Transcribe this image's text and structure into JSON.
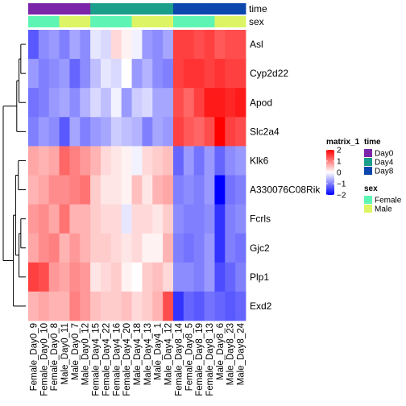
{
  "chart_data": {
    "type": "heatmap",
    "annotation_labels": [
      "time",
      "sex"
    ],
    "columns": [
      "Female_Day0_9",
      "Female_Day0_10",
      "Female_Day0_8",
      "Male_Day0_11",
      "Male_Day0_7",
      "Male_Day0_12",
      "Female_Day4_15",
      "Female_Day4_22",
      "Female_Day4_16",
      "Female_Day4_20",
      "Male_Day4_18",
      "Male_Day4_13",
      "Male_Day4_1",
      "Male_Day4_12",
      "Female_Day8_14",
      "Female_Day8_5",
      "Female_Day8_19",
      "Female_Day8_13",
      "Male_Day8_6",
      "Male_Day8_23",
      "Male_Day8_24"
    ],
    "column_time": [
      "Day0",
      "Day0",
      "Day0",
      "Day0",
      "Day0",
      "Day0",
      "Day4",
      "Day4",
      "Day4",
      "Day4",
      "Day4",
      "Day4",
      "Day4",
      "Day4",
      "Day8",
      "Day8",
      "Day8",
      "Day8",
      "Day8",
      "Day8",
      "Day8"
    ],
    "column_sex": [
      "Female",
      "Female",
      "Female",
      "Male",
      "Male",
      "Male",
      "Female",
      "Female",
      "Female",
      "Female",
      "Male",
      "Male",
      "Male",
      "Male",
      "Female",
      "Female",
      "Female",
      "Female",
      "Male",
      "Male",
      "Male"
    ],
    "rows": [
      "Asl",
      "Cyp2d22",
      "Apod",
      "Slc2a4",
      "Klk6",
      "A330076C08Rik",
      "Fcrls",
      "Gjc2",
      "Plp1",
      "Exd2"
    ],
    "values": [
      [
        -1.3,
        -0.9,
        -0.8,
        -1.0,
        -0.7,
        -0.9,
        -0.2,
        -0.3,
        0.3,
        0.1,
        -0.1,
        -0.8,
        -0.9,
        -0.7,
        1.5,
        1.5,
        1.4,
        1.5,
        1.3,
        1.4,
        1.4
      ],
      [
        -0.8,
        -1.0,
        -0.9,
        -0.8,
        -1.2,
        -0.9,
        -0.5,
        -0.2,
        -0.3,
        0.0,
        -0.8,
        -0.6,
        -0.9,
        -1.0,
        1.5,
        1.6,
        1.6,
        1.5,
        1.6,
        1.5,
        1.5
      ],
      [
        -1.1,
        -1.0,
        -0.8,
        -0.7,
        -0.9,
        -0.6,
        -0.3,
        -0.5,
        -0.1,
        -0.8,
        -0.4,
        -0.3,
        -0.7,
        -0.7,
        1.4,
        1.2,
        1.5,
        1.8,
        1.8,
        1.7,
        1.8
      ],
      [
        -1.0,
        -0.8,
        -0.9,
        -1.3,
        -0.7,
        -1.0,
        -0.8,
        -0.7,
        -0.4,
        -0.5,
        -0.6,
        -1.0,
        -0.7,
        -0.8,
        1.5,
        1.3,
        1.2,
        1.4,
        2.2,
        1.5,
        1.4
      ],
      [
        0.7,
        0.6,
        0.7,
        1.2,
        1.0,
        0.8,
        0.6,
        0.3,
        0.2,
        0.1,
        -0.1,
        0.3,
        0.4,
        0.5,
        -1.2,
        -0.8,
        -1.1,
        -0.8,
        -1.2,
        -0.9,
        -0.8
      ],
      [
        0.6,
        0.7,
        0.9,
        0.9,
        1.0,
        1.1,
        0.4,
        0.2,
        0.2,
        0.1,
        0.5,
        0.2,
        0.6,
        0.7,
        -1.0,
        -0.9,
        -1.0,
        -0.8,
        -2.0,
        -1.1,
        -1.0
      ],
      [
        0.8,
        0.9,
        0.7,
        1.1,
        0.6,
        0.6,
        0.4,
        0.3,
        0.3,
        -0.2,
        0.3,
        0.3,
        0.2,
        0.4,
        -0.9,
        -1.0,
        -1.0,
        -0.9,
        -1.6,
        -1.0,
        -0.9
      ],
      [
        0.7,
        0.9,
        1.0,
        0.6,
        0.8,
        0.6,
        0.4,
        0.4,
        0.3,
        0.2,
        0.3,
        0.1,
        0.1,
        0.6,
        -1.0,
        -1.1,
        -1.0,
        -0.8,
        -1.6,
        -1.0,
        -1.1
      ],
      [
        1.5,
        1.4,
        0.8,
        0.7,
        0.9,
        0.8,
        0.2,
        0.3,
        0.4,
        0.1,
        0.0,
        0.4,
        0.5,
        0.3,
        -0.9,
        -0.9,
        -1.0,
        -0.8,
        -1.4,
        -1.2,
        -1.0
      ],
      [
        0.6,
        0.7,
        0.6,
        0.6,
        1.0,
        0.8,
        0.5,
        0.4,
        0.4,
        0.5,
        0.3,
        0.4,
        0.6,
        1.4,
        -1.6,
        -1.2,
        -1.3,
        -1.1,
        -1.2,
        -1.3,
        -1.2
      ]
    ],
    "row_dendrogram": [
      [
        0,
        1,
        0.22
      ],
      [
        10,
        2,
        0.3
      ],
      [
        11,
        3,
        0.4
      ],
      [
        6,
        7,
        0.22
      ],
      [
        13,
        8,
        0.3
      ],
      [
        4,
        5,
        0.33
      ],
      [
        15,
        14,
        0.45
      ],
      [
        16,
        9,
        0.55
      ],
      [
        12,
        17,
        1.0
      ]
    ],
    "color_scale": {
      "min": -2,
      "mid": 0,
      "max": 2,
      "low": "#0000FF",
      "mid_color": "#FFFFFF",
      "high": "#FF0000"
    },
    "legends": [
      {
        "title": "matrix_1",
        "type": "continuous",
        "ticks": [
          2,
          1,
          0,
          -1,
          -2
        ]
      },
      {
        "title": "time",
        "type": "discrete",
        "levels": [
          "Day0",
          "Day4",
          "Day8"
        ],
        "colors": [
          "#7B25A8",
          "#1B9E8A",
          "#0B47AD"
        ]
      },
      {
        "title": "sex",
        "type": "discrete",
        "levels": [
          "Female",
          "Male"
        ],
        "colors": [
          "#5EF5B4",
          "#DDF564"
        ]
      }
    ]
  }
}
